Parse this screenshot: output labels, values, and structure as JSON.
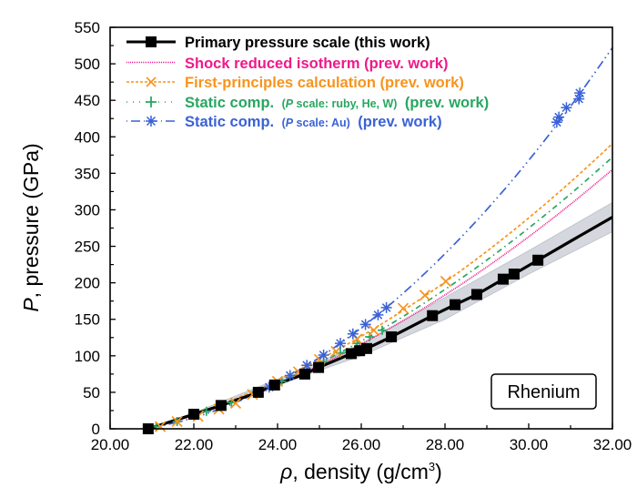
{
  "chart_data": {
    "type": "line",
    "xlabel_symbol": "ρ",
    "xlabel": ", density (g/cm",
    "xlabel_sup": "3",
    "xlabel_end": ")",
    "ylabel_symbol": "P",
    "ylabel": ", pressure (GPa)",
    "xlim": [
      20,
      32
    ],
    "ylim": [
      0,
      550
    ],
    "xticks": [
      "20.00",
      "22.00",
      "24.00",
      "26.00",
      "28.00",
      "30.00",
      "32.00"
    ],
    "xtick_values": [
      20,
      22,
      24,
      26,
      28,
      30,
      32
    ],
    "yticks": [
      "0",
      "50",
      "100",
      "150",
      "200",
      "250",
      "300",
      "350",
      "400",
      "450",
      "500",
      "550"
    ],
    "ytick_values": [
      0,
      50,
      100,
      150,
      200,
      250,
      300,
      350,
      400,
      450,
      500,
      550
    ],
    "grid": false,
    "legend_placement": "top-left",
    "annotation": "Rhenium",
    "series": [
      {
        "name": "Primary pressure scale (this work)",
        "color": "#000000",
        "marker": "square",
        "line_x": [
          20.91,
          22.0,
          22.65,
          23.54,
          23.93,
          24.65,
          24.98,
          25.76,
          25.96,
          26.13,
          26.72,
          27.7,
          28.24,
          28.76,
          29.39,
          29.65,
          30.22,
          31.0,
          32.0
        ],
        "line_y": [
          0,
          20,
          32,
          50,
          60,
          75,
          84,
          103,
          107,
          110,
          126,
          155,
          170,
          184,
          205,
          212,
          231,
          257,
          290
        ],
        "marker_x": [
          20.91,
          22.0,
          22.65,
          23.54,
          23.93,
          24.65,
          24.98,
          25.76,
          25.96,
          26.13,
          26.72,
          27.7,
          28.24,
          28.76,
          29.39,
          29.65,
          30.22
        ],
        "marker_y": [
          0,
          20,
          32,
          50,
          60,
          75,
          84,
          103,
          107,
          110,
          126,
          155,
          170,
          184,
          205,
          212,
          231
        ],
        "band": {
          "color": "#d4d7dd",
          "x": [
            20.91,
            22,
            24,
            26,
            28,
            30,
            32
          ],
          "lower": [
            0,
            18,
            60,
            100,
            150,
            212,
            270
          ],
          "upper": [
            0,
            22,
            68,
            116,
            180,
            244,
            310
          ]
        }
      },
      {
        "name": "Shock reduced isotherm (prev. work)",
        "color": "#ee1a8a",
        "dash": "dotted",
        "line_x": [
          20.9,
          21,
          22,
          23,
          24,
          25,
          26,
          27,
          28,
          29,
          30,
          31,
          32
        ],
        "line_y": [
          0,
          1.5,
          18.3,
          38.1,
          61,
          87,
          116.1,
          148.2,
          183.4,
          221.7,
          263.1,
          307.6,
          355
        ]
      },
      {
        "name": "First-principles calculation (prev. work)",
        "color": "#f7941d",
        "dash": "dashed",
        "marker": "x",
        "line_x": [
          20.9,
          21,
          22,
          23,
          24,
          25,
          26,
          27,
          28,
          29,
          30,
          31,
          32
        ],
        "line_y": [
          0,
          1.6,
          19.8,
          41.4,
          66.4,
          94.9,
          126.8,
          162.2,
          201,
          243.2,
          288.9,
          338.1,
          390.6
        ],
        "marker_x": [
          21.2,
          21.6,
          22.1,
          22.6,
          23.0,
          23.4,
          24.0,
          24.5,
          25.0,
          25.4,
          25.9,
          26.3,
          27.0,
          27.52,
          28.02
        ],
        "marker_y": [
          3,
          10,
          17,
          27,
          35,
          47,
          65,
          78,
          95,
          106,
          123,
          135,
          165,
          183,
          202
        ]
      },
      {
        "name_main": "Static comp.",
        "name_paren_symbol": "P",
        "name_paren": " scale: ruby, He, W)",
        "name_end": "(prev. work)",
        "color": "#27a760",
        "dash": "dash-dot-dot",
        "marker": "plus",
        "line_x": [
          20.9,
          21,
          22,
          23,
          24,
          25,
          26,
          27,
          28,
          29,
          30,
          31,
          32
        ],
        "line_y": [
          0,
          1.5,
          18.6,
          39,
          62.8,
          89.8,
          120.2,
          153.9,
          190.9,
          231.2,
          274.9,
          321.8,
          372
        ],
        "marker_x": [
          21.1,
          21.6,
          22.3,
          22.9,
          23.5,
          24.1,
          24.6,
          25.1,
          25.5,
          25.9,
          26.2,
          26.5
        ],
        "marker_y": [
          3,
          10,
          24,
          36,
          51,
          65,
          78,
          92,
          104,
          117,
          126,
          135
        ]
      },
      {
        "name_main": "Static comp.",
        "name_paren_symbol": "P",
        "name_paren": " scale: Au)",
        "name_end": "(prev. work)",
        "color": "#3a62d6",
        "dash": "dash-dot-dot",
        "marker": "asterisk",
        "line_x": [
          20.9,
          21,
          22,
          23,
          24,
          25,
          26,
          27,
          28,
          29,
          30,
          31,
          32
        ],
        "line_y": [
          0,
          1,
          15.2,
          36,
          63.5,
          97.6,
          138.4,
          185.7,
          239.8,
          300.4,
          367.7,
          441.7,
          522
        ],
        "marker_x": [
          23.8,
          24.3,
          24.7,
          25.1,
          25.5,
          25.8,
          26.1,
          26.4,
          26.6,
          30.67,
          30.72,
          30.9,
          31.2,
          31.22
        ],
        "marker_y": [
          57,
          73,
          87,
          101,
          117,
          130,
          143,
          156,
          166,
          420,
          427,
          440,
          452,
          460
        ]
      }
    ]
  }
}
